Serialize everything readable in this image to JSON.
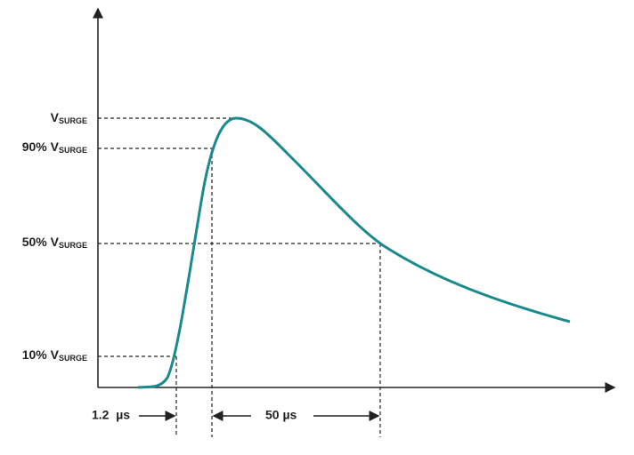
{
  "levels": [
    {
      "main": "V",
      "sub": "SURGE"
    },
    {
      "main": "90% V",
      "sub": "SURGE"
    },
    {
      "main": "50% V",
      "sub": "SURGE"
    },
    {
      "main": "10% V",
      "sub": "SURGE"
    }
  ],
  "times": [
    "1.2  µs",
    "50 µs"
  ]
}
